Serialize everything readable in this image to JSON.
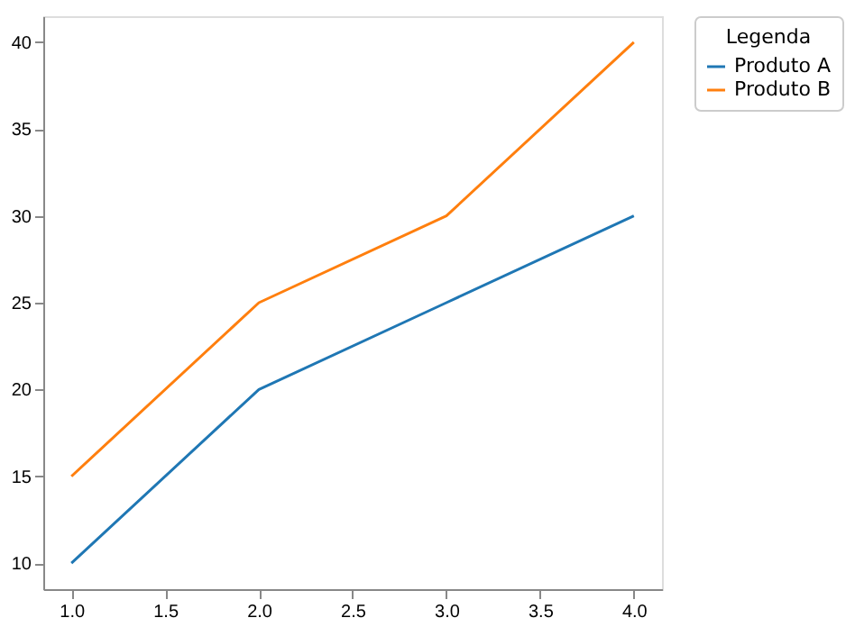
{
  "chart_data": {
    "type": "line",
    "x": [
      1,
      2,
      3,
      4
    ],
    "series": [
      {
        "name": "Produto A",
        "color": "#1f77b4",
        "values": [
          10,
          20,
          25,
          30
        ]
      },
      {
        "name": "Produto B",
        "color": "#ff7f0e",
        "values": [
          15,
          25,
          30,
          40
        ]
      }
    ],
    "legend_title": "Legenda",
    "legend": "top right",
    "grid": false,
    "marker": "none",
    "line_style": "solid",
    "xlim": [
      0.85,
      4.15
    ],
    "ylim": [
      8.5,
      41.5
    ],
    "xticks": [
      {
        "value": 1,
        "label": "1.0"
      },
      {
        "value": 1.5,
        "label": "1.5"
      },
      {
        "value": 2,
        "label": "2.0"
      },
      {
        "value": 2.5,
        "label": "2.5"
      },
      {
        "value": 3,
        "label": "3.0"
      },
      {
        "value": 3.5,
        "label": "3.5"
      },
      {
        "value": 4,
        "label": "4.0"
      }
    ],
    "yticks": [
      10,
      15,
      20,
      25,
      30,
      35,
      40
    ]
  }
}
